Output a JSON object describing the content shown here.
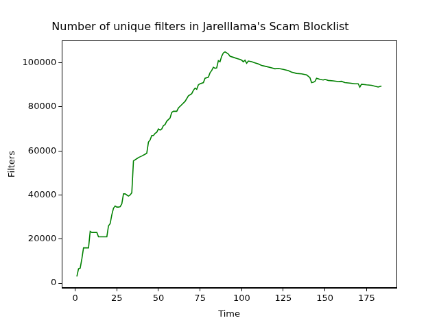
{
  "chart_data": {
    "type": "line",
    "title": "Number of unique filters in Jarelllama's Scam Blocklist",
    "x_label": "Time",
    "y_label": "Filters",
    "color": "#008000",
    "grid": false,
    "x": [
      1,
      2,
      3,
      4,
      5,
      6,
      7,
      8,
      9,
      10,
      11,
      12,
      13,
      14,
      15,
      16,
      17,
      18,
      19,
      20,
      21,
      22,
      23,
      24,
      25,
      26,
      27,
      28,
      29,
      30,
      31,
      32,
      33,
      34,
      35,
      36,
      37,
      38,
      40,
      42,
      43,
      44,
      45,
      46,
      47,
      48,
      49,
      50,
      51,
      52,
      53,
      54,
      55,
      57,
      58,
      59,
      61,
      62,
      64,
      66,
      68,
      70,
      71,
      72,
      73,
      74,
      75,
      77,
      78,
      80,
      81,
      82,
      83,
      84,
      85,
      86,
      87,
      88,
      89,
      90,
      91,
      92,
      93,
      95,
      97,
      99,
      100,
      101,
      102,
      103,
      104,
      106,
      108,
      110,
      112,
      115,
      118,
      120,
      122,
      125,
      128,
      130,
      133,
      136,
      139,
      141,
      142,
      143,
      144,
      145,
      147,
      149,
      150,
      152,
      155,
      158,
      160,
      162,
      165,
      168,
      170,
      171,
      172,
      175,
      178,
      180,
      182,
      184
    ],
    "values": [
      3000,
      6500,
      6800,
      11000,
      16000,
      16000,
      16000,
      16000,
      23500,
      23000,
      23000,
      23000,
      23000,
      21000,
      21000,
      21000,
      21000,
      21000,
      21000,
      26000,
      27000,
      31000,
      34000,
      35000,
      34500,
      34500,
      34700,
      36000,
      40500,
      40500,
      40000,
      39500,
      40000,
      41000,
      55500,
      56000,
      56500,
      57000,
      57700,
      58500,
      59000,
      64000,
      65000,
      67000,
      67000,
      68000,
      68500,
      70000,
      69500,
      70000,
      71500,
      72000,
      73500,
      75000,
      77500,
      78000,
      78000,
      79500,
      81000,
      82500,
      85000,
      86000,
      87500,
      88500,
      88000,
      90000,
      90500,
      91000,
      93000,
      93500,
      95500,
      96500,
      98000,
      97500,
      97700,
      101000,
      100500,
      103000,
      104500,
      105000,
      104500,
      104000,
      103000,
      102500,
      102000,
      101500,
      101200,
      100500,
      101200,
      99800,
      100800,
      100500,
      100000,
      99500,
      98800,
      98300,
      97700,
      97300,
      97500,
      97000,
      96500,
      95800,
      95200,
      95000,
      94500,
      93300,
      91000,
      91200,
      91500,
      93000,
      92500,
      92200,
      92500,
      92000,
      91800,
      91500,
      91600,
      91000,
      90800,
      90500,
      90500,
      89000,
      90300,
      90000,
      89800,
      89400,
      89000,
      89500
    ],
    "xlim": [
      -8,
      193
    ],
    "xticks": [
      0,
      25,
      50,
      75,
      100,
      125,
      150,
      175
    ],
    "ylim": [
      -2100,
      110100
    ],
    "yticks": [
      0,
      20000,
      40000,
      60000,
      80000,
      100000
    ]
  }
}
